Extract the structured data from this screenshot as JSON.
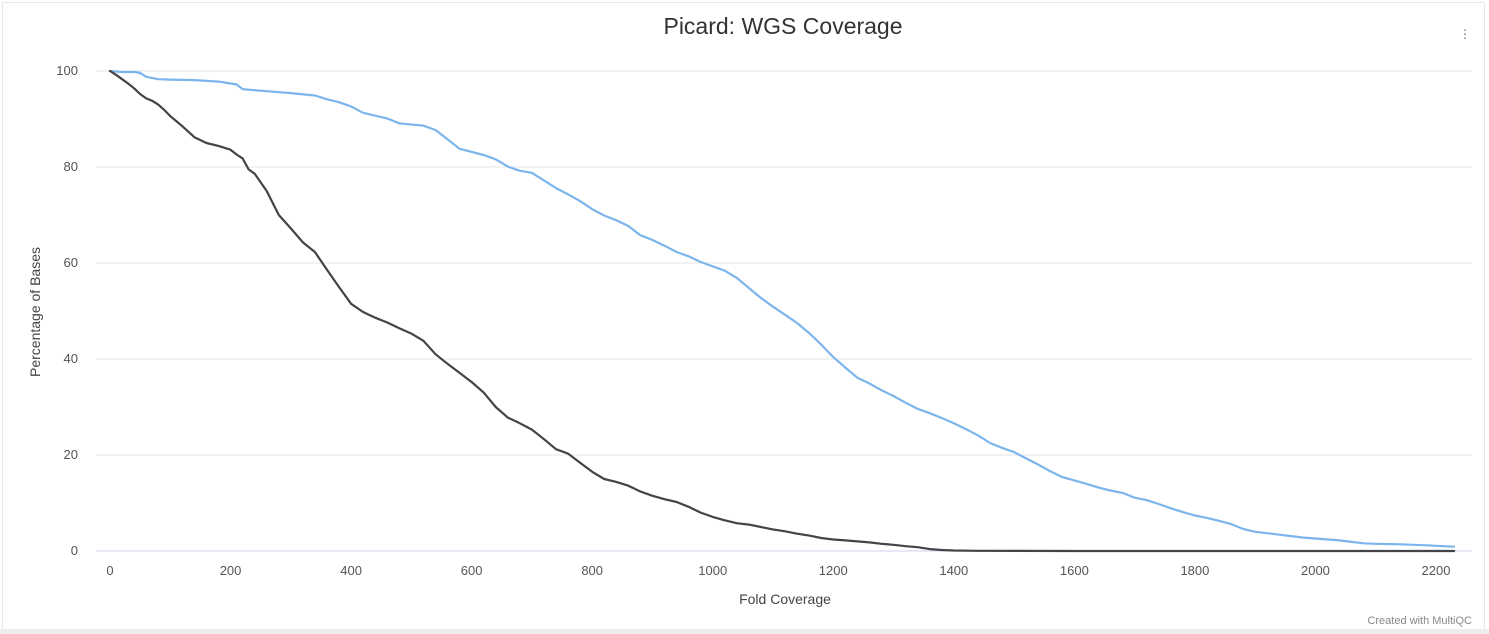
{
  "chart_data": {
    "type": "line",
    "title": "Picard: WGS Coverage",
    "xlabel": "Fold Coverage",
    "ylabel": "Percentage of Bases",
    "xlim": [
      0,
      2230
    ],
    "ylim": [
      0,
      100
    ],
    "xticks": [
      "0",
      "200",
      "400",
      "600",
      "800",
      "1000",
      "1200",
      "1400",
      "1600",
      "1800",
      "2000",
      "2200"
    ],
    "yticks": [
      "0",
      "20",
      "40",
      "60",
      "80",
      "100"
    ],
    "grid": true,
    "series": [
      {
        "color": "#7cb5ec",
        "x": [
          0,
          20,
          40,
          50,
          60,
          80,
          100,
          140,
          180,
          200,
          210,
          220,
          260,
          300,
          340,
          360,
          380,
          400,
          420,
          460,
          480,
          520,
          540,
          560,
          580,
          620,
          640,
          660,
          680,
          700,
          720,
          740,
          760,
          780,
          800,
          820,
          840,
          860,
          880,
          900,
          920,
          940,
          960,
          980,
          1000,
          1020,
          1040,
          1060,
          1080,
          1100,
          1120,
          1140,
          1160,
          1180,
          1200,
          1220,
          1240,
          1260,
          1280,
          1300,
          1320,
          1340,
          1360,
          1380,
          1400,
          1420,
          1440,
          1460,
          1480,
          1500,
          1520,
          1540,
          1560,
          1580,
          1600,
          1620,
          1640,
          1660,
          1680,
          1700,
          1720,
          1740,
          1760,
          1780,
          1800,
          1820,
          1840,
          1860,
          1880,
          1900,
          1920,
          1940,
          1960,
          1980,
          2000,
          2020,
          2040,
          2060,
          2080,
          2100,
          2140,
          2180,
          2230
        ],
        "y": [
          100,
          99.8,
          99.8,
          99.6,
          98.8,
          98.3,
          98.2,
          98.1,
          97.8,
          97.4,
          97.2,
          96.2,
          95.8,
          95.4,
          94.9,
          94.1,
          93.5,
          92.6,
          91.3,
          90.1,
          89.1,
          88.6,
          87.7,
          85.8,
          83.8,
          82.5,
          81.6,
          80.1,
          79.2,
          78.8,
          77.2,
          75.6,
          74.3,
          72.9,
          71.2,
          69.9,
          68.9,
          67.7,
          65.8,
          64.8,
          63.6,
          62.3,
          61.4,
          60.2,
          59.3,
          58.4,
          56.9,
          54.8,
          52.7,
          50.9,
          49.2,
          47.5,
          45.4,
          43.0,
          40.4,
          38.2,
          36.1,
          34.9,
          33.5,
          32.3,
          30.9,
          29.6,
          28.7,
          27.7,
          26.6,
          25.4,
          24.1,
          22.5,
          21.5,
          20.6,
          19.3,
          18.0,
          16.6,
          15.4,
          14.7,
          14.0,
          13.2,
          12.6,
          12.1,
          11.1,
          10.6,
          9.8,
          8.9,
          8.1,
          7.4,
          6.9,
          6.3,
          5.6,
          4.6,
          4.0,
          3.7,
          3.4,
          3.1,
          2.8,
          2.6,
          2.4,
          2.2,
          1.9,
          1.6,
          1.5,
          1.4,
          1.2,
          0.9
        ]
      },
      {
        "color": "#434348",
        "x": [
          0,
          10,
          20,
          30,
          40,
          50,
          60,
          70,
          80,
          90,
          100,
          120,
          140,
          160,
          180,
          200,
          210,
          220,
          230,
          240,
          260,
          280,
          300,
          320,
          340,
          360,
          380,
          400,
          420,
          440,
          460,
          480,
          500,
          520,
          540,
          560,
          580,
          600,
          620,
          640,
          660,
          680,
          700,
          720,
          740,
          760,
          780,
          800,
          820,
          840,
          860,
          880,
          900,
          920,
          940,
          960,
          980,
          1000,
          1020,
          1040,
          1060,
          1080,
          1100,
          1120,
          1140,
          1160,
          1180,
          1200,
          1220,
          1240,
          1260,
          1280,
          1300,
          1320,
          1340,
          1360,
          1380,
          1400,
          1440,
          1500,
          1600,
          1800,
          2000,
          2230
        ],
        "y": [
          100,
          99.2,
          98.3,
          97.4,
          96.4,
          95.2,
          94.3,
          93.8,
          93.0,
          91.9,
          90.6,
          88.5,
          86.2,
          85.0,
          84.4,
          83.6,
          82.6,
          81.8,
          79.5,
          78.6,
          75.0,
          70.0,
          67.2,
          64.3,
          62.3,
          58.6,
          55.0,
          51.5,
          49.8,
          48.6,
          47.6,
          46.4,
          45.3,
          43.8,
          41.0,
          39.0,
          37.1,
          35.2,
          33.0,
          30.0,
          27.8,
          26.6,
          25.3,
          23.3,
          21.2,
          20.3,
          18.4,
          16.5,
          15.0,
          14.4,
          13.6,
          12.4,
          11.5,
          10.8,
          10.2,
          9.2,
          8.0,
          7.1,
          6.4,
          5.8,
          5.5,
          5.0,
          4.5,
          4.1,
          3.6,
          3.2,
          2.7,
          2.4,
          2.2,
          2.0,
          1.8,
          1.5,
          1.3,
          1.0,
          0.8,
          0.4,
          0.2,
          0.1,
          0.05,
          0.02,
          0,
          0,
          0,
          0
        ]
      }
    ]
  },
  "credits": "Created with MultiQC",
  "menu_icon": "⋮"
}
